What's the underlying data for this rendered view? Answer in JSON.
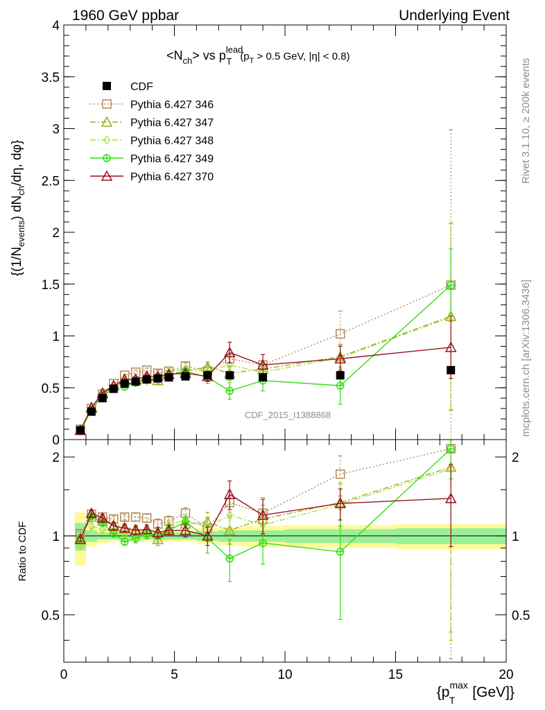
{
  "header": {
    "left": "1960 GeV ppbar",
    "right": "Underlying Event"
  },
  "side": {
    "rivet": "Rivet 3.1.10, ≥ 200k events",
    "mcplots": "mcplots.cern.ch [arXiv:1306.3436]"
  },
  "watermark": "CDF_2015_I1388868",
  "chart_data": [
    {
      "type": "line",
      "panel": "main",
      "title": "<N_ch> vs p_T^lead (p_T > 0.5 GeV, |η| < 0.8)",
      "ylabel": "{(1/N_events) dN_ch/dη, dφ}",
      "xlabel": "{p_T^max [GeV]}",
      "xlim": [
        0,
        20
      ],
      "ylim": [
        0,
        4
      ],
      "x_ticks": [
        0,
        5,
        10,
        15,
        20
      ],
      "y_ticks": [
        0,
        0.5,
        1,
        1.5,
        2,
        2.5,
        3,
        3.5,
        4
      ],
      "legend_position": "top-left",
      "x": [
        0.75,
        1.25,
        1.75,
        2.25,
        2.75,
        3.25,
        3.75,
        4.25,
        4.75,
        5.5,
        6.5,
        7.5,
        9.0,
        12.5,
        17.5
      ],
      "series": [
        {
          "name": "CDF",
          "color": "#000000",
          "marker": "filled-square",
          "style": "none",
          "values": [
            0.09,
            0.27,
            0.4,
            0.49,
            0.54,
            0.56,
            0.58,
            0.59,
            0.6,
            0.61,
            0.62,
            0.62,
            0.6,
            0.62,
            0.67
          ]
        },
        {
          "name": "Pythia 6.427 346",
          "color": "#b5895a",
          "marker": "open-square",
          "style": "dotted",
          "values": [
            0.1,
            0.3,
            0.44,
            0.54,
            0.62,
            0.65,
            0.67,
            0.64,
            0.66,
            0.71,
            0.66,
            0.78,
            0.72,
            1.02,
            1.49
          ],
          "errors": [
            0.01,
            0.01,
            0.01,
            0.01,
            0.01,
            0.02,
            0.02,
            0.03,
            0.03,
            0.03,
            0.06,
            0.08,
            0.1,
            0.22,
            1.5
          ]
        },
        {
          "name": "Pythia 6.427 347",
          "color": "#9aaa1e",
          "marker": "open-triangle",
          "style": "dashdot",
          "values": [
            0.09,
            0.3,
            0.44,
            0.52,
            0.57,
            0.57,
            0.59,
            0.57,
            0.63,
            0.66,
            0.7,
            0.64,
            0.68,
            0.8,
            1.19
          ],
          "errors": [
            0.01,
            0.01,
            0.01,
            0.01,
            0.01,
            0.02,
            0.02,
            0.03,
            0.03,
            0.03,
            0.05,
            0.07,
            0.08,
            0.12,
            0.9
          ]
        },
        {
          "name": "Pythia 6.427 348",
          "color": "#a8e03c",
          "marker": "open-diamond",
          "style": "dashdot",
          "values": [
            0.09,
            0.3,
            0.43,
            0.5,
            0.55,
            0.55,
            0.57,
            0.59,
            0.66,
            0.68,
            0.66,
            0.72,
            0.65,
            0.79,
            1.18
          ],
          "errors": [
            0.01,
            0.01,
            0.01,
            0.01,
            0.01,
            0.02,
            0.02,
            0.03,
            0.03,
            0.03,
            0.05,
            0.07,
            0.08,
            0.12,
            0.9
          ]
        },
        {
          "name": "Pythia 6.427 349",
          "color": "#33dd11",
          "marker": "crossed-circle",
          "style": "solid",
          "values": [
            0.08,
            0.29,
            0.42,
            0.49,
            0.51,
            0.55,
            0.59,
            0.59,
            0.62,
            0.66,
            0.6,
            0.47,
            0.57,
            0.52,
            1.49
          ],
          "errors": [
            0.01,
            0.01,
            0.01,
            0.01,
            0.01,
            0.02,
            0.02,
            0.03,
            0.03,
            0.03,
            0.06,
            0.08,
            0.1,
            0.18,
            0.35
          ]
        },
        {
          "name": "Pythia 6.427 370",
          "color": "#99111e",
          "marker": "open-triangle",
          "style": "solid",
          "values": [
            0.09,
            0.31,
            0.45,
            0.52,
            0.58,
            0.58,
            0.61,
            0.61,
            0.63,
            0.64,
            0.61,
            0.84,
            0.72,
            0.78,
            0.89
          ],
          "errors": [
            0.01,
            0.01,
            0.01,
            0.01,
            0.01,
            0.02,
            0.02,
            0.03,
            0.03,
            0.03,
            0.05,
            0.1,
            0.1,
            0.12,
            0.3
          ]
        }
      ]
    },
    {
      "type": "line",
      "panel": "ratio",
      "ylabel": "Ratio to CDF",
      "xlabel": "{p_T^max [GeV]}",
      "xlim": [
        0,
        20
      ],
      "ylim": [
        0.33,
        2.33
      ],
      "y_ticks": [
        0.5,
        1,
        2
      ],
      "x": [
        0.75,
        1.25,
        1.75,
        2.25,
        2.75,
        3.25,
        3.75,
        4.25,
        4.75,
        5.5,
        6.5,
        7.5,
        9.0,
        12.5,
        17.5
      ],
      "band_bins": [
        [
          0.5,
          1.0
        ],
        [
          1.0,
          1.5
        ],
        [
          1.5,
          2.0
        ],
        [
          2.0,
          2.5
        ],
        [
          2.5,
          3.0
        ],
        [
          3.0,
          3.5
        ],
        [
          3.5,
          4.0
        ],
        [
          4.0,
          4.5
        ],
        [
          4.5,
          5.0
        ],
        [
          5.0,
          6.0
        ],
        [
          6.0,
          7.0
        ],
        [
          7.0,
          8.0
        ],
        [
          8.0,
          10.0
        ],
        [
          10.0,
          15.0
        ],
        [
          15.0,
          20.0
        ]
      ],
      "band_stat": [
        0.12,
        0.05,
        0.03,
        0.03,
        0.03,
        0.03,
        0.03,
        0.03,
        0.03,
        0.03,
        0.04,
        0.05,
        0.05,
        0.06,
        0.07
      ],
      "band_total": [
        0.23,
        0.09,
        0.06,
        0.05,
        0.05,
        0.05,
        0.05,
        0.05,
        0.05,
        0.05,
        0.07,
        0.08,
        0.09,
        0.1,
        0.11
      ],
      "series": [
        {
          "name": "Pythia 6.427 346",
          "values": [
            1.02,
            1.21,
            1.18,
            1.16,
            1.18,
            1.18,
            1.17,
            1.11,
            1.14,
            1.22,
            1.07,
            1.34,
            1.22,
            1.72,
            2.15
          ],
          "errors": [
            0.02,
            0.03,
            0.03,
            0.03,
            0.03,
            0.04,
            0.04,
            0.05,
            0.05,
            0.06,
            0.1,
            0.15,
            0.18,
            0.3,
            2.2
          ]
        },
        {
          "name": "Pythia 6.427 347",
          "values": [
            0.98,
            1.18,
            1.14,
            1.1,
            1.08,
            1.06,
            1.04,
            0.97,
            1.07,
            1.11,
            1.13,
            1.05,
            1.16,
            1.34,
            1.83
          ],
          "errors": [
            0.02,
            0.03,
            0.03,
            0.03,
            0.03,
            0.04,
            0.04,
            0.05,
            0.05,
            0.06,
            0.1,
            0.12,
            0.15,
            0.25,
            1.4
          ]
        },
        {
          "name": "Pythia 6.427 348",
          "values": [
            0.92,
            1.09,
            1.06,
            1.04,
            1.01,
            1.0,
            1.01,
            1.02,
            1.1,
            1.15,
            1.08,
            1.2,
            1.1,
            1.32,
            1.8
          ],
          "errors": [
            0.02,
            0.03,
            0.03,
            0.03,
            0.03,
            0.04,
            0.04,
            0.05,
            0.05,
            0.06,
            0.1,
            0.12,
            0.15,
            0.25,
            1.4
          ]
        },
        {
          "name": "Pythia 6.427 349",
          "values": [
            0.98,
            1.19,
            1.12,
            1.02,
            0.95,
            0.98,
            1.02,
            1.0,
            1.05,
            1.13,
            0.98,
            0.82,
            0.94,
            0.87,
            2.15
          ],
          "errors": [
            0.02,
            0.03,
            0.03,
            0.03,
            0.03,
            0.04,
            0.04,
            0.05,
            0.05,
            0.06,
            0.12,
            0.15,
            0.16,
            0.39,
            0.5
          ]
        },
        {
          "name": "Pythia 6.427 370",
          "values": [
            0.97,
            1.22,
            1.17,
            1.09,
            1.07,
            1.05,
            1.06,
            1.03,
            1.05,
            1.05,
            1.0,
            1.44,
            1.2,
            1.33,
            1.39
          ],
          "errors": [
            0.02,
            0.03,
            0.03,
            0.03,
            0.03,
            0.04,
            0.04,
            0.05,
            0.05,
            0.06,
            0.08,
            0.18,
            0.18,
            0.18,
            0.48
          ]
        }
      ]
    }
  ]
}
